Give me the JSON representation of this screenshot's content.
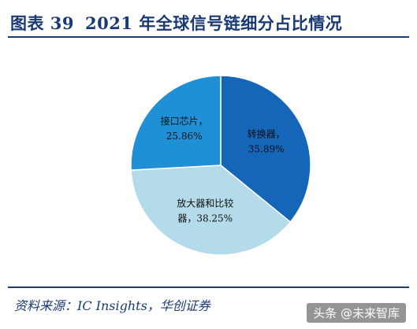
{
  "header": {
    "figure_label": "图表 39",
    "title": "2021 年全球信号链细分占比情况"
  },
  "chart_data": {
    "type": "pie",
    "title": "2021 年全球信号链细分占比情况",
    "slices": [
      {
        "label": "转换器",
        "value": 35.89,
        "value_text": "35.89%",
        "color": "#1565b8"
      },
      {
        "label": "放大器和比较器",
        "value": 38.25,
        "value_text": "38.25%",
        "color": "#b3dbe9"
      },
      {
        "label": "接口芯片",
        "value": 25.86,
        "value_text": "25.86%",
        "color": "#1f8fd6"
      }
    ],
    "start_angle_deg": 0,
    "direction": "clockwise"
  },
  "footer": {
    "source": "资料来源：IC Insights，华创证券"
  },
  "watermark": "头条 @未来智库"
}
